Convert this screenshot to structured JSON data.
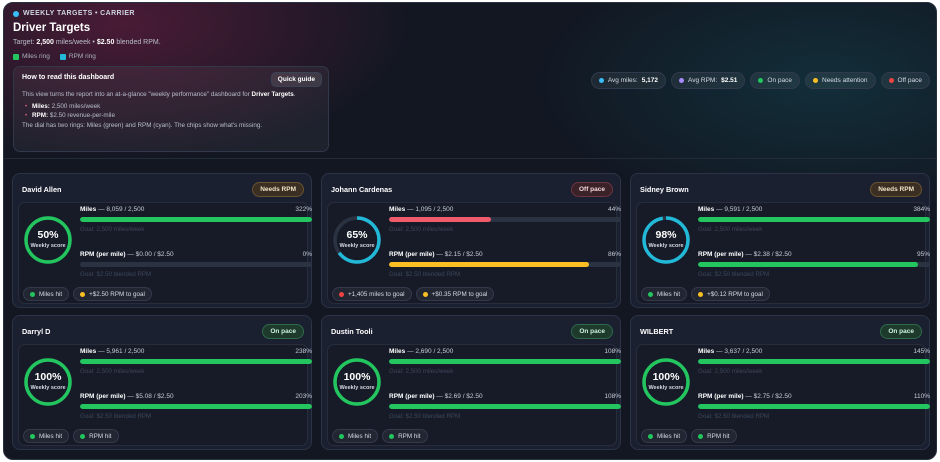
{
  "header": {
    "eyebrow": "WEEKLY TARGETS • CARRIER",
    "title": "Driver Targets",
    "target_prefix": "Target:",
    "target_miles": "2,500",
    "target_miles_unit": "miles/week •",
    "target_rpm": "$2.50",
    "target_rpm_unit": "blended RPM.",
    "legend": [
      {
        "label": "Miles ring",
        "color": "#22c55e"
      },
      {
        "label": "RPM ring",
        "color": "#22b8d8"
      }
    ]
  },
  "guide": {
    "title": "How to read this dashboard",
    "button": "Quick guide",
    "intro_a": "This view turns the report into an at-a-glance \"weekly performance\" dashboard for",
    "intro_b": "Driver Targets",
    "intro_c": ".",
    "items": [
      {
        "key": "Miles:",
        "value": "2,500 miles/week"
      },
      {
        "key": "RPM:",
        "value": "$2.50 revenue-per-mile"
      }
    ],
    "note": "The dial has two rings: Miles (green) and RPM (cyan). The chips show what's missing."
  },
  "summary_chips": [
    {
      "label": "Avg miles:",
      "value": "5,172",
      "color": "#38bdf8"
    },
    {
      "label": "Avg RPM:",
      "value": "$2.51",
      "color": "#a78bfa"
    },
    {
      "label": "On pace",
      "value": "",
      "color": "#22c55e"
    },
    {
      "label": "Needs attention",
      "value": "",
      "color": "#fbbf24"
    },
    {
      "label": "Off pace",
      "value": "",
      "color": "#ef4444"
    }
  ],
  "colors": {
    "green": "#22c55e",
    "cyan": "#22b8d8",
    "red": "#ef5b6b",
    "amber": "#fbbf24",
    "track": "#2b3343"
  },
  "drivers": [
    {
      "name": "David Allen",
      "status": "Needs RPM",
      "status_kind": "needs",
      "score": "50%",
      "score_label": "Weekly score",
      "miles_ring": 1.0,
      "rpm_ring": 0.0,
      "miles_label": "Miles",
      "miles_text": "— 8,059 / 2,500",
      "miles_pct": "322%",
      "miles_fill": 1.0,
      "miles_color": "#22c55e",
      "miles_goal": "Goal: 2,500 miles/week",
      "rpm_label": "RPM (per mile)",
      "rpm_text": "— $0.00 / $2.50",
      "rpm_pct": "0%",
      "rpm_fill": 0.0,
      "rpm_color": "#22c55e",
      "rpm_goal": "Goal: $2.50 blended RPM",
      "tags": [
        {
          "label": "Miles hit",
          "color": "#22c55e"
        },
        {
          "label": "+$2.50 RPM to goal",
          "color": "#fbbf24"
        }
      ]
    },
    {
      "name": "Johann Cardenas",
      "status": "Off pace",
      "status_kind": "off",
      "score": "65%",
      "score_label": "Weekly score",
      "miles_ring": 0.44,
      "rpm_ring": 0.86,
      "miles_label": "Miles",
      "miles_text": "— 1,095 / 2,500",
      "miles_pct": "44%",
      "miles_fill": 0.44,
      "miles_color": "#ef5b6b",
      "miles_goal": "Goal: 2,500 miles/week",
      "rpm_label": "RPM (per mile)",
      "rpm_text": "— $2.15 / $2.50",
      "rpm_pct": "86%",
      "rpm_fill": 0.86,
      "rpm_color": "#fbbf24",
      "rpm_goal": "Goal: $2.50 blended RPM",
      "tags": [
        {
          "label": "+1,405 miles to goal",
          "color": "#ef4444"
        },
        {
          "label": "+$0.35 RPM to goal",
          "color": "#fbbf24"
        }
      ]
    },
    {
      "name": "Sidney Brown",
      "status": "Needs RPM",
      "status_kind": "needs",
      "score": "98%",
      "score_label": "Weekly score",
      "miles_ring": 1.0,
      "rpm_ring": 0.95,
      "miles_label": "Miles",
      "miles_text": "— 9,591 / 2,500",
      "miles_pct": "384%",
      "miles_fill": 1.0,
      "miles_color": "#22c55e",
      "miles_goal": "Goal: 2,500 miles/week",
      "rpm_label": "RPM (per mile)",
      "rpm_text": "— $2.38 / $2.50",
      "rpm_pct": "95%",
      "rpm_fill": 0.95,
      "rpm_color": "#22c55e",
      "rpm_goal": "Goal: $2.50 blended RPM",
      "tags": [
        {
          "label": "Miles hit",
          "color": "#22c55e"
        },
        {
          "label": "+$0.12 RPM to goal",
          "color": "#fbbf24"
        }
      ]
    },
    {
      "name": "Darryl D",
      "status": "On pace",
      "status_kind": "on",
      "score": "100%",
      "score_label": "Weekly score",
      "miles_ring": 1.0,
      "rpm_ring": 1.0,
      "miles_label": "Miles",
      "miles_text": "— 5,961 / 2,500",
      "miles_pct": "238%",
      "miles_fill": 1.0,
      "miles_color": "#22c55e",
      "miles_goal": "Goal: 2,500 miles/week",
      "rpm_label": "RPM (per mile)",
      "rpm_text": "— $5.08 / $2.50",
      "rpm_pct": "203%",
      "rpm_fill": 1.0,
      "rpm_color": "#22c55e",
      "rpm_goal": "Goal: $2.50 blended RPM",
      "tags": [
        {
          "label": "Miles hit",
          "color": "#22c55e"
        },
        {
          "label": "RPM hit",
          "color": "#22c55e"
        }
      ]
    },
    {
      "name": "Dustin Tooli",
      "status": "On pace",
      "status_kind": "on",
      "score": "100%",
      "score_label": "Weekly score",
      "miles_ring": 1.0,
      "rpm_ring": 1.0,
      "miles_label": "Miles",
      "miles_text": "— 2,690 / 2,500",
      "miles_pct": "108%",
      "miles_fill": 1.0,
      "miles_color": "#22c55e",
      "miles_goal": "Goal: 2,500 miles/week",
      "rpm_label": "RPM (per mile)",
      "rpm_text": "— $2.69 / $2.50",
      "rpm_pct": "108%",
      "rpm_fill": 1.0,
      "rpm_color": "#22c55e",
      "rpm_goal": "Goal: $2.50 blended RPM",
      "tags": [
        {
          "label": "Miles hit",
          "color": "#22c55e"
        },
        {
          "label": "RPM hit",
          "color": "#22c55e"
        }
      ]
    },
    {
      "name": "WILBERT",
      "status": "On pace",
      "status_kind": "on",
      "score": "100%",
      "score_label": "Weekly score",
      "miles_ring": 1.0,
      "rpm_ring": 1.0,
      "miles_label": "Miles",
      "miles_text": "— 3,637 / 2,500",
      "miles_pct": "145%",
      "miles_fill": 1.0,
      "miles_color": "#22c55e",
      "miles_goal": "Goal: 2,500 miles/week",
      "rpm_label": "RPM (per mile)",
      "rpm_text": "— $2.75 / $2.50",
      "rpm_pct": "110%",
      "rpm_fill": 1.0,
      "rpm_color": "#22c55e",
      "rpm_goal": "Goal: $2.50 blended RPM",
      "tags": [
        {
          "label": "Miles hit",
          "color": "#22c55e"
        },
        {
          "label": "RPM hit",
          "color": "#22c55e"
        }
      ]
    }
  ]
}
